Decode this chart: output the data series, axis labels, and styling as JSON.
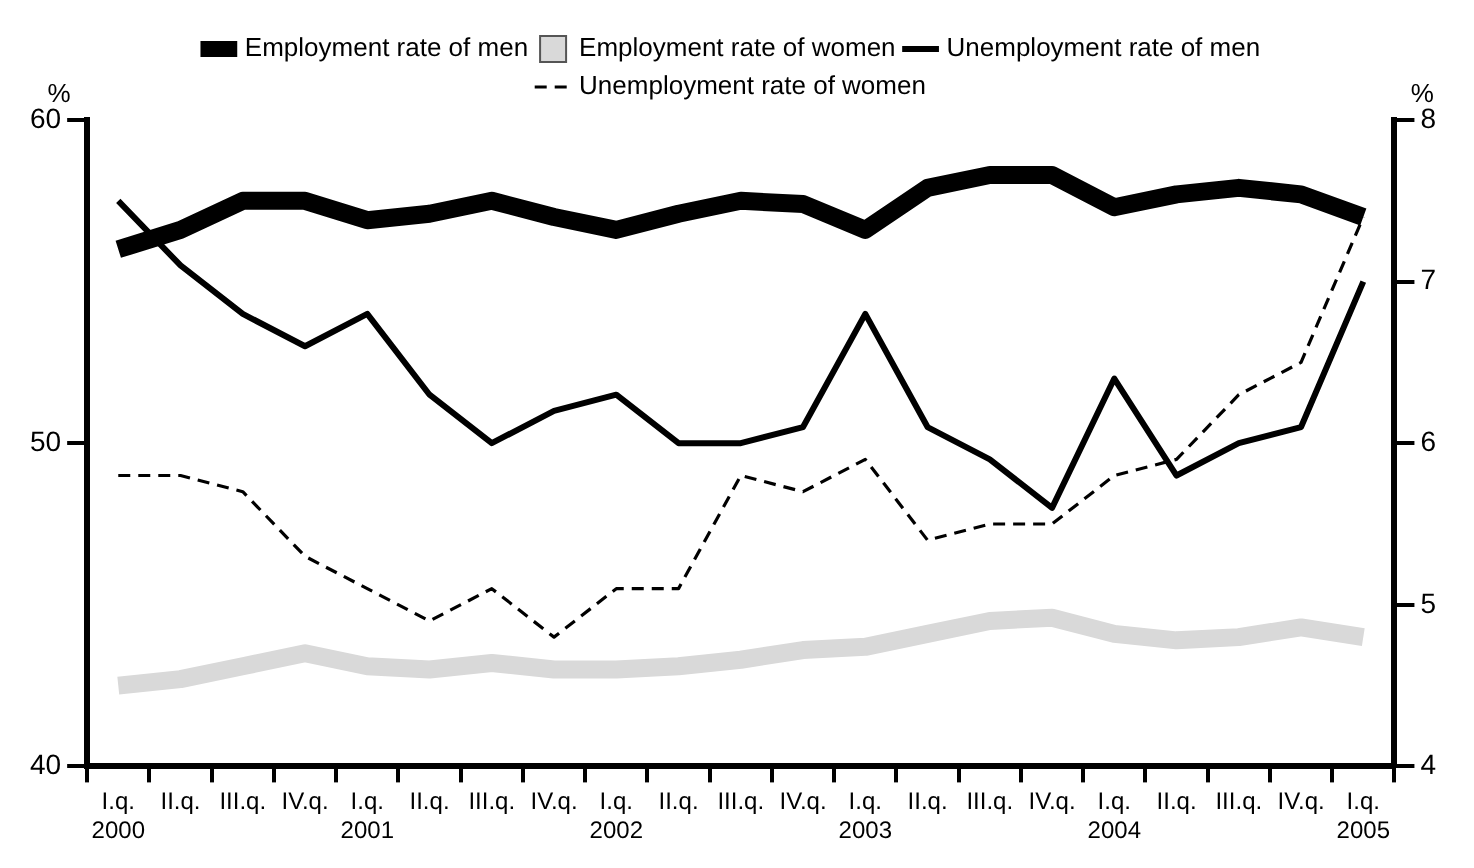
{
  "chart_data": {
    "type": "line",
    "ylabel": "%",
    "y2label": "%",
    "categories": [
      "I.q. 2000",
      "II.q.",
      "III.q.",
      "IV.q.",
      "I.q. 2001",
      "II.q.",
      "III.q.",
      "IV.q.",
      "I.q. 2002",
      "II.q.",
      "III.q.",
      "IV.q.",
      "I.q. 2003",
      "II.q.",
      "III.q.",
      "IV.q.",
      "I.q. 2004",
      "II.q.",
      "III.q.",
      "IV.q.",
      "I.q. 2005"
    ],
    "series": [
      {
        "name": "Employment rate of men",
        "color": "#000000",
        "line_style": "solid",
        "values": [
          56.0,
          56.6,
          57.5,
          57.5,
          56.9,
          57.1,
          57.5,
          57.0,
          56.6,
          57.1,
          57.5,
          57.4,
          56.6,
          57.9,
          58.3,
          58.3,
          57.3,
          57.7,
          57.9,
          57.7,
          57.0
        ]
      },
      {
        "name": "Employment rate of women",
        "color": "#d9d9d9",
        "line_style": "solid",
        "values": [
          42.5,
          42.7,
          43.1,
          43.5,
          43.1,
          43.0,
          43.2,
          43.0,
          43.0,
          43.1,
          43.3,
          43.6,
          43.7,
          44.1,
          44.5,
          44.6,
          44.1,
          43.9,
          44.0,
          44.3,
          44.0
        ]
      },
      {
        "name": "Unemployment rate of men",
        "color": "#000000",
        "line_style": "solid",
        "axis": "y2",
        "values": [
          7.5,
          7.1,
          6.8,
          6.6,
          6.8,
          6.3,
          6.0,
          6.2,
          6.3,
          6.0,
          6.0,
          6.1,
          6.8,
          6.1,
          5.9,
          5.6,
          6.4,
          5.8,
          6.0,
          6.1,
          7.0
        ]
      },
      {
        "name": "Unemployment rate of women",
        "color": "#000000",
        "line_style": "dashed",
        "axis": "y2",
        "values": [
          5.8,
          5.8,
          5.7,
          5.3,
          5.1,
          4.9,
          5.1,
          4.8,
          5.1,
          5.1,
          5.8,
          5.7,
          5.9,
          5.4,
          5.5,
          5.5,
          5.8,
          5.9,
          6.3,
          6.5,
          7.4
        ]
      }
    ],
    "ylim": [
      40,
      60
    ],
    "yticks": [
      40,
      50,
      60
    ],
    "y2lim": [
      4,
      8
    ],
    "y2ticks": [
      4,
      5,
      6,
      7,
      8
    ],
    "legend": "top",
    "marker": "none"
  }
}
